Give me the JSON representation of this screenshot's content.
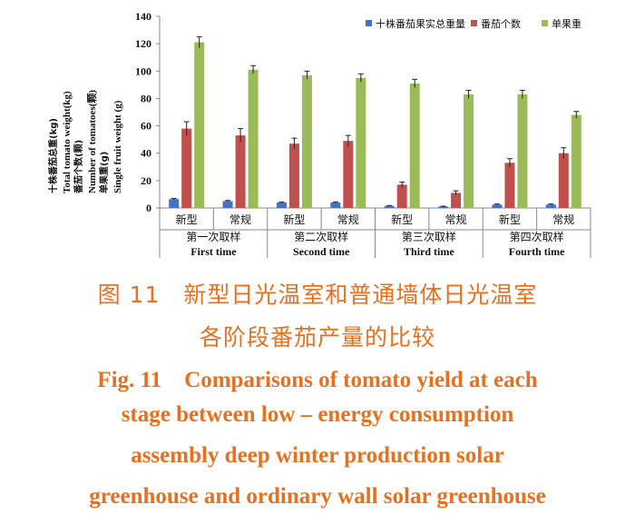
{
  "chart_data": {
    "type": "bar",
    "ylim": [
      0,
      140
    ],
    "yticks": [
      0,
      20,
      40,
      60,
      80,
      100,
      120,
      140
    ],
    "ylabel_lines": [
      "十株番茄总重(kg)",
      "Total tomato weight(kg)",
      "番茄个数(颗)",
      "Number of tomatoes(颗)",
      "单果重(g)",
      "Single fruit weight (g)"
    ],
    "categories": [
      "新型",
      "常规",
      "新型",
      "常规",
      "新型",
      "常规",
      "新型",
      "常规"
    ],
    "groups": [
      {
        "cn": "第一次取样",
        "en": "First time"
      },
      {
        "cn": "第二次取样",
        "en": "Second time"
      },
      {
        "cn": "第三次取样",
        "en": "Third time"
      },
      {
        "cn": "第四次取样",
        "en": "Fourth time"
      }
    ],
    "legend_position": "top-right",
    "series": [
      {
        "name": "十株番茄果实总重量",
        "color": "#4472c4",
        "values": [
          6.5,
          5,
          4,
          4,
          1.5,
          1,
          2.5,
          2.5
        ],
        "errors": [
          0.5,
          0.5,
          0.4,
          0.4,
          0.3,
          0.3,
          0.4,
          0.4
        ]
      },
      {
        "name": "番茄个数",
        "color": "#c0504d",
        "values": [
          58,
          53,
          47,
          49,
          17,
          11,
          33,
          40
        ],
        "errors": [
          5,
          5,
          4,
          4,
          2,
          1.5,
          3,
          4
        ]
      },
      {
        "name": "单果重",
        "color": "#9bbb59",
        "values": [
          121,
          101,
          97,
          95,
          91,
          83,
          83,
          68
        ],
        "errors": [
          4,
          3,
          3,
          3,
          3,
          3,
          3,
          2.5
        ]
      }
    ]
  },
  "caption": {
    "cn_line1": "图 11　新型日光温室和普通墙体日光温室",
    "cn_line2": "各阶段番茄产量的比较",
    "en_lines": [
      "Fig. 11　Comparisons of tomato yield at each",
      "stage between low – energy consumption",
      "assembly deep winter production solar",
      "greenhouse and ordinary wall solar greenhouse"
    ]
  }
}
